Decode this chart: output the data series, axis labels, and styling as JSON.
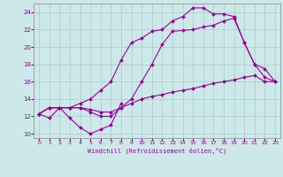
{
  "xlabel": "Windchill (Refroidissement éolien,°C)",
  "xlim": [
    -0.5,
    23.5
  ],
  "ylim": [
    9.5,
    25.0
  ],
  "yticks": [
    10,
    12,
    14,
    16,
    18,
    20,
    22,
    24
  ],
  "xticks": [
    0,
    1,
    2,
    3,
    4,
    5,
    6,
    7,
    8,
    9,
    10,
    11,
    12,
    13,
    14,
    15,
    16,
    17,
    18,
    19,
    20,
    21,
    22,
    23
  ],
  "background_color": "#cce8e8",
  "grid_color": "#aacccc",
  "line_color": "#990099",
  "lines": [
    {
      "x": [
        0,
        1,
        2,
        3,
        4,
        5,
        6,
        7,
        8
      ],
      "y": [
        12.3,
        11.8,
        13.0,
        11.8,
        10.7,
        10.0,
        10.5,
        11.0,
        13.5
      ]
    },
    {
      "x": [
        0,
        1,
        2,
        3,
        4,
        5,
        6,
        7,
        8,
        9,
        10,
        11,
        12,
        13,
        14,
        15,
        16,
        17,
        18,
        19,
        20,
        21,
        22,
        23
      ],
      "y": [
        12.3,
        13.0,
        13.0,
        13.0,
        13.0,
        12.8,
        12.5,
        12.5,
        13.0,
        13.5,
        14.0,
        14.3,
        14.5,
        14.8,
        15.0,
        15.2,
        15.5,
        15.8,
        16.0,
        16.2,
        16.5,
        16.7,
        16.0,
        16.0
      ]
    },
    {
      "x": [
        0,
        1,
        2,
        3,
        4,
        5,
        6,
        7,
        8,
        9,
        10,
        11,
        12,
        13,
        14,
        15,
        16,
        17,
        18,
        19,
        20,
        21,
        22,
        23
      ],
      "y": [
        12.3,
        13.0,
        13.0,
        13.0,
        13.5,
        14.0,
        15.0,
        16.0,
        18.5,
        20.5,
        21.0,
        21.8,
        22.0,
        23.0,
        23.5,
        24.5,
        24.5,
        23.8,
        23.8,
        23.5,
        20.5,
        18.0,
        17.5,
        16.0
      ]
    },
    {
      "x": [
        0,
        1,
        2,
        3,
        4,
        5,
        6,
        7,
        8,
        9,
        10,
        11,
        12,
        13,
        14,
        15,
        16,
        17,
        18,
        19,
        20,
        21,
        22,
        23
      ],
      "y": [
        12.3,
        13.0,
        13.0,
        13.0,
        13.0,
        12.5,
        12.0,
        12.0,
        13.0,
        14.0,
        16.0,
        18.0,
        20.3,
        21.8,
        21.9,
        22.0,
        22.3,
        22.5,
        23.0,
        23.3,
        20.5,
        18.0,
        16.5,
        16.0
      ]
    }
  ]
}
